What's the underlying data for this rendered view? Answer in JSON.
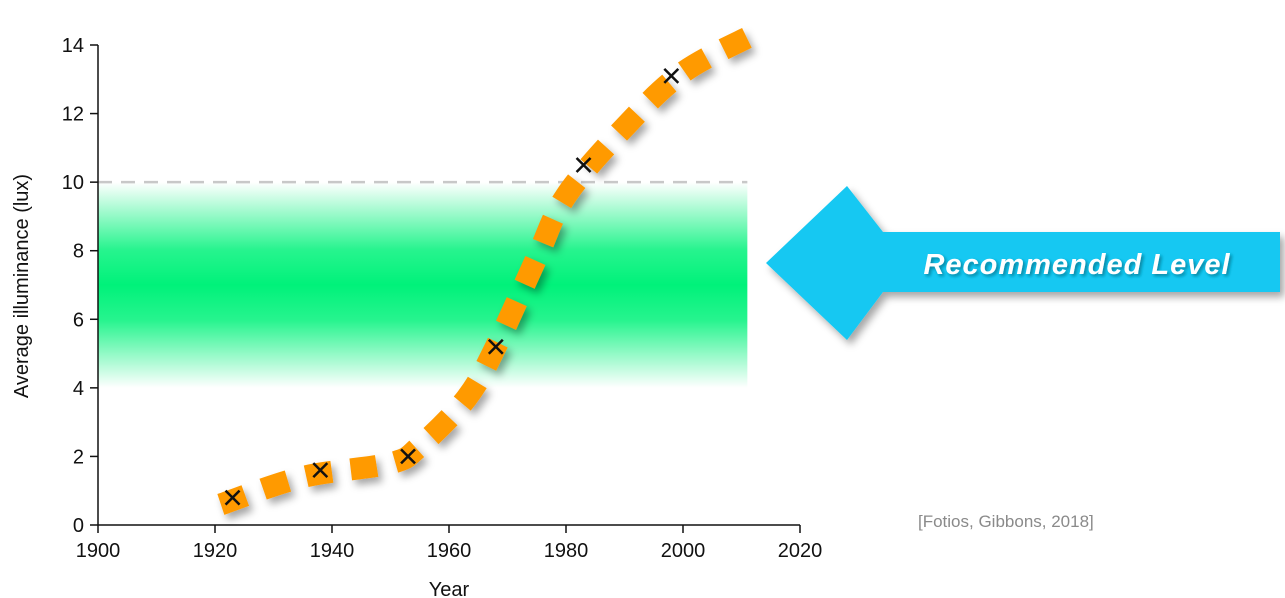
{
  "chart_data": {
    "type": "line",
    "xlabel": "Year",
    "ylabel": "Average illuminance (lux)",
    "xlim": [
      1900,
      2020
    ],
    "ylim": [
      0,
      14
    ],
    "xticks": [
      1900,
      1920,
      1940,
      1960,
      1980,
      2000,
      2020
    ],
    "yticks": [
      0,
      2,
      4,
      6,
      8,
      10,
      12,
      14
    ],
    "grid": false,
    "series": [
      {
        "values_x": [
          1923,
          1938,
          1953,
          1968,
          1983,
          1998
        ],
        "values_y": [
          0.8,
          1.6,
          2.0,
          5.2,
          10.5,
          13.1
        ],
        "marker": "x",
        "marker_color": "#111111"
      }
    ],
    "trend_line": {
      "style": "thick-dashed",
      "color": "#ff9a00",
      "x": [
        1921,
        1935,
        1950,
        1955,
        1963,
        1968,
        1975,
        1980,
        1990,
        2000,
        2012
      ],
      "y": [
        0.6,
        1.4,
        1.8,
        2.3,
        3.7,
        5.2,
        7.8,
        9.6,
        11.6,
        13.2,
        14.3
      ]
    },
    "recommended_band": {
      "y_min": 4,
      "y_max": 10,
      "peak_min": 6,
      "peak_max": 8,
      "color": "#00f27a"
    },
    "reference_line": {
      "y": 10,
      "style": "dashed",
      "color": "#c8c8c8"
    },
    "annotation": {
      "text": "Recommended Level",
      "color": "#12c8f2"
    },
    "citation": "[Fotios, Gibbons, 2018]"
  }
}
